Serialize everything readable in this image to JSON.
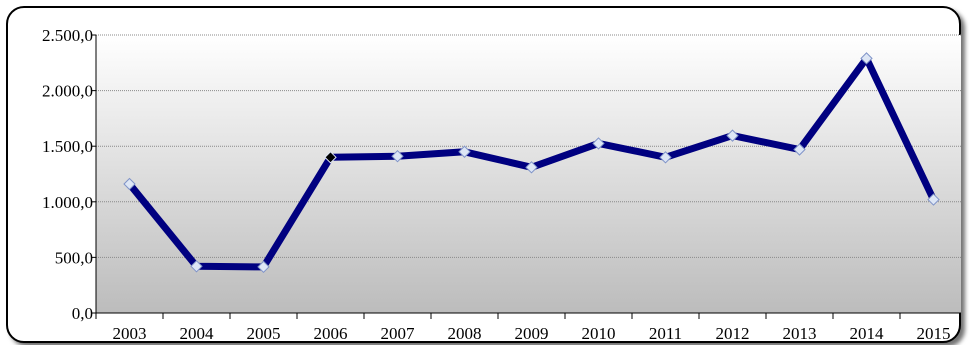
{
  "chart_data": {
    "type": "line",
    "title": "",
    "xlabel": "",
    "ylabel": "",
    "categories": [
      "2003",
      "2004",
      "2005",
      "2006",
      "2007",
      "2008",
      "2009",
      "2010",
      "2011",
      "2012",
      "2013",
      "2014",
      "2015"
    ],
    "series": [
      {
        "values": [
          1160,
          420,
          415,
          1400,
          1410,
          1450,
          1310,
          1525,
          1400,
          1595,
          1470,
          2290,
          1020
        ]
      }
    ],
    "ylim": [
      0,
      2500
    ],
    "yticks": [
      0,
      500,
      1000,
      1500,
      2000,
      2500
    ],
    "ytick_labels": [
      "0,0",
      "500,0",
      "1.000,0",
      "1.500,0",
      "2.000,0",
      "2.500,0"
    ],
    "grid": true,
    "legend": "none",
    "colors": {
      "line": "#000080",
      "marker_fill": "#dde6f5",
      "marker_stroke": "#7f93c8",
      "highlight_marker": "#000000",
      "plot_bg_top": "#ffffff",
      "plot_bg_bottom": "#bcbcbc",
      "gridline": "#8a8a8a"
    },
    "highlighted_category": "2006"
  }
}
